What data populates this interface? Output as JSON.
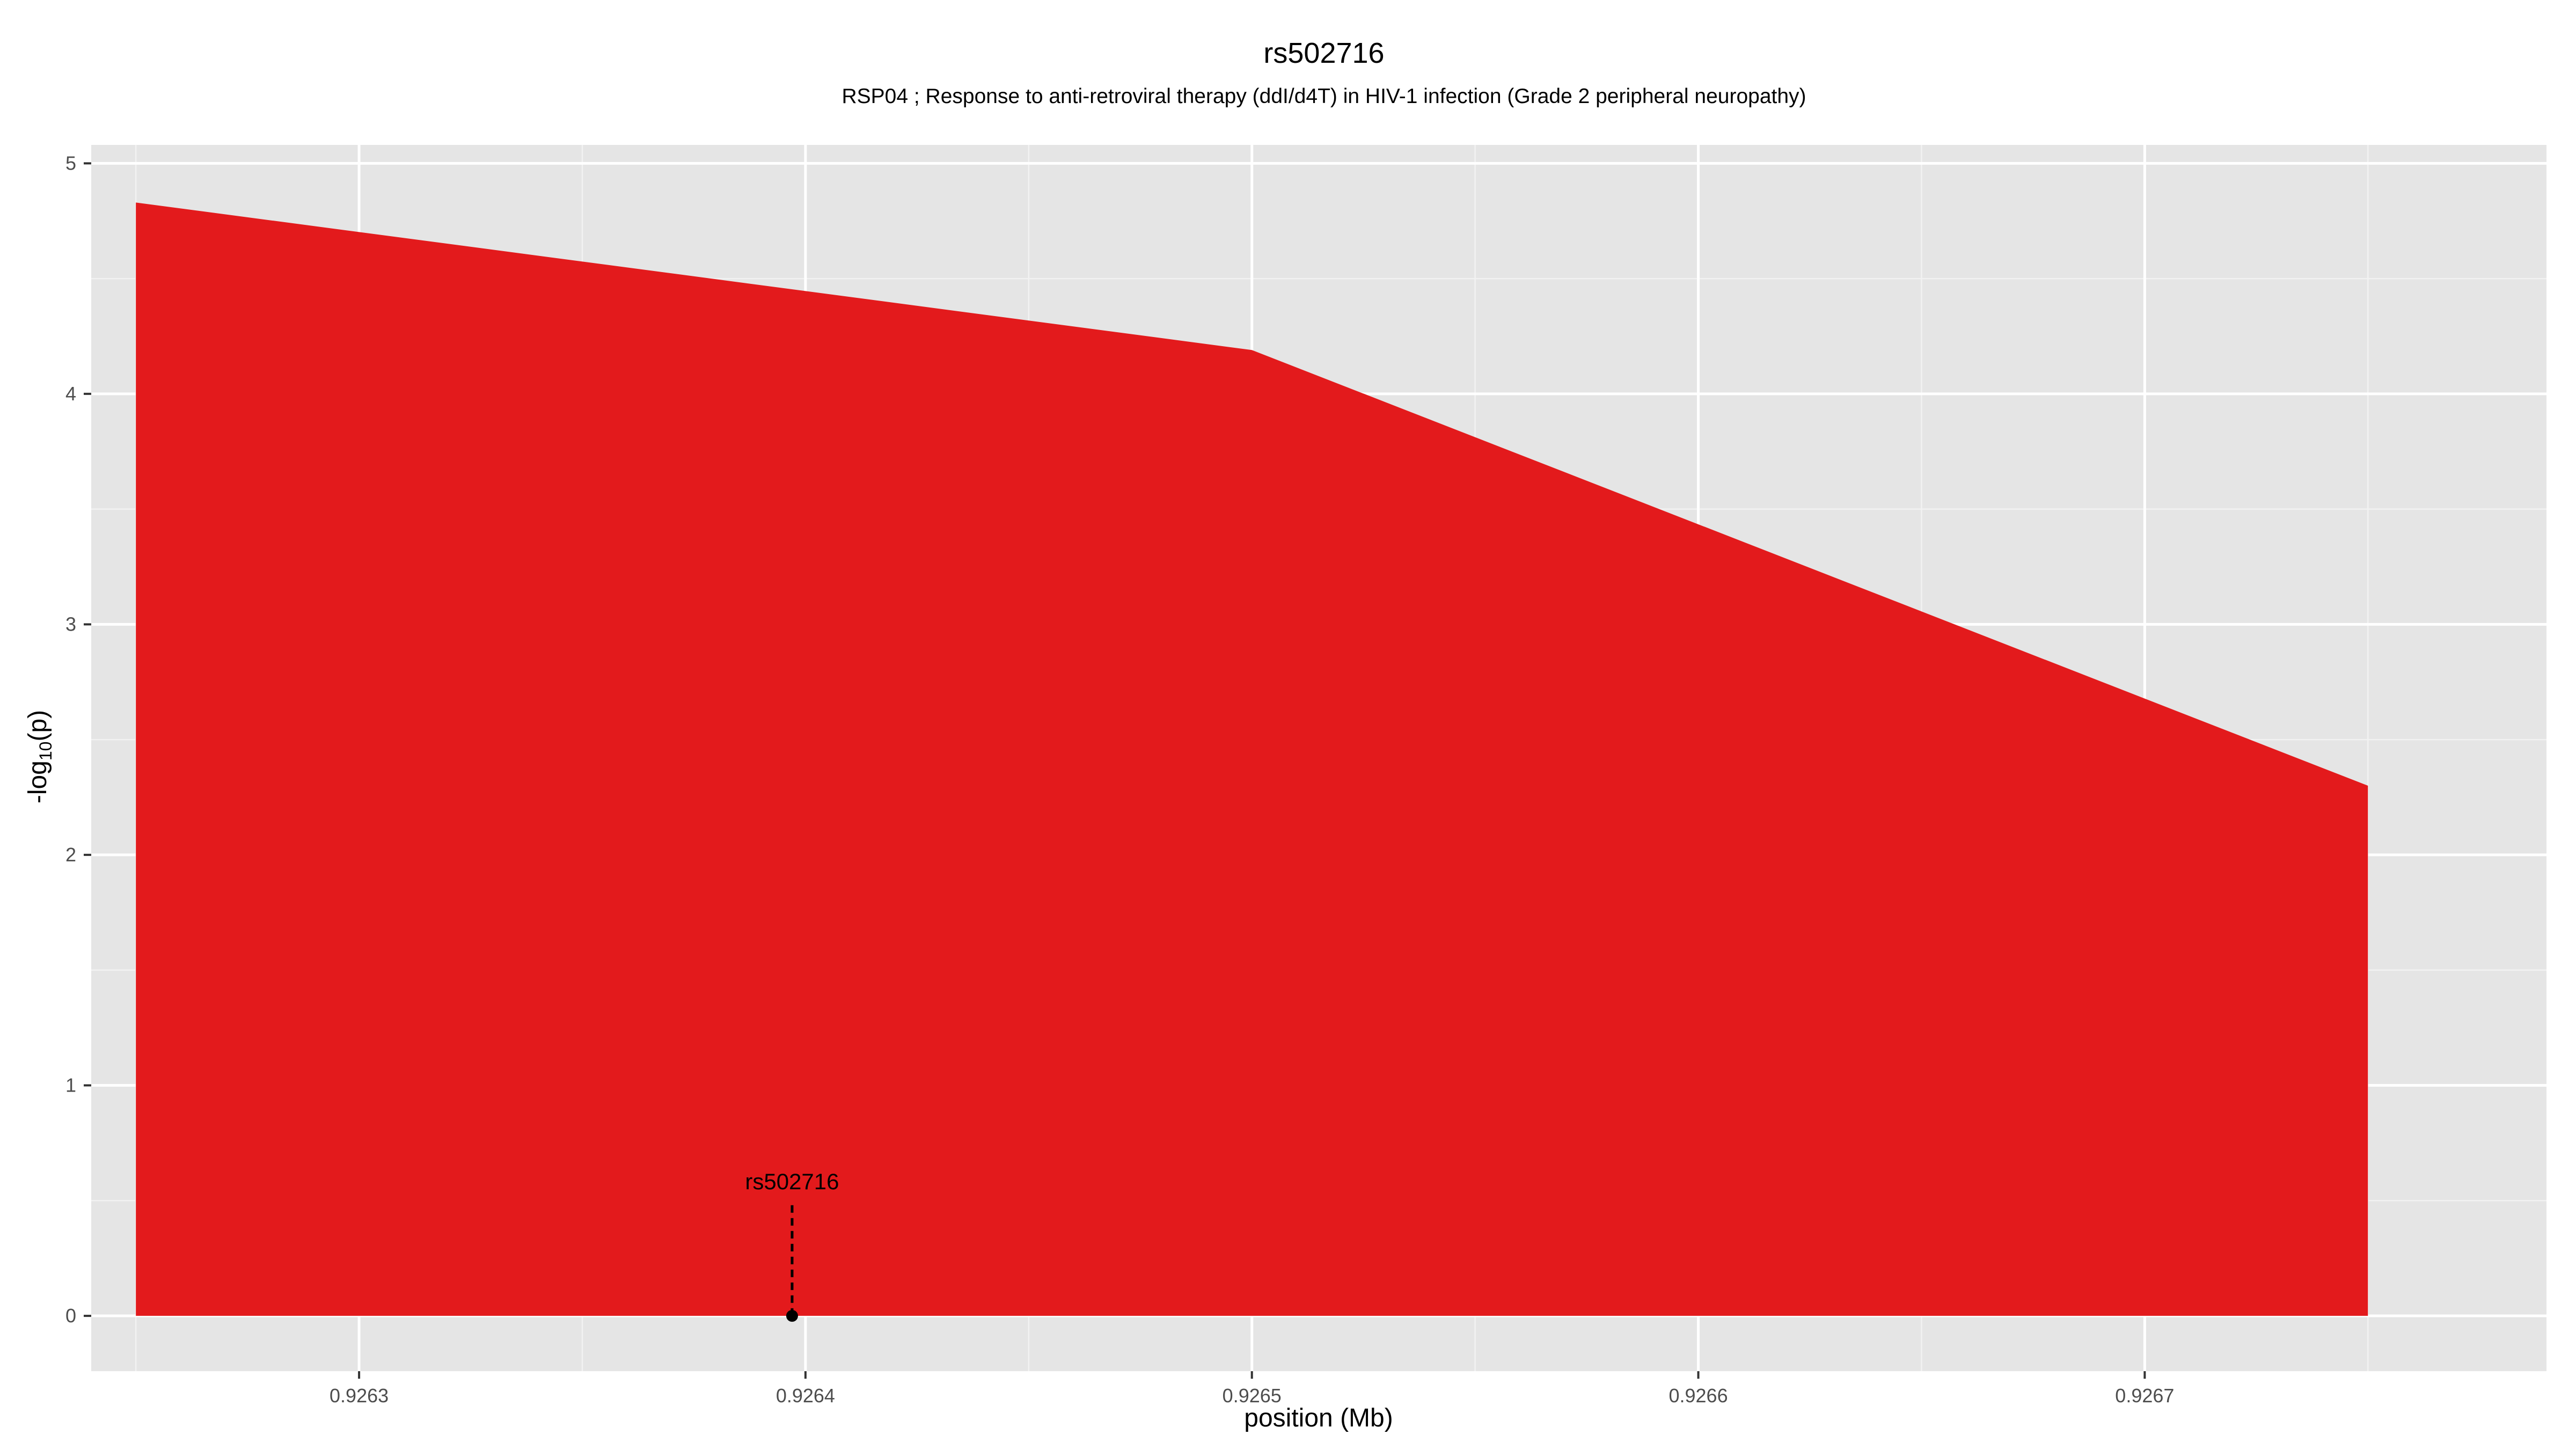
{
  "chart_data": {
    "type": "area",
    "title": "rs502716",
    "subtitle": "RSP04 ; Response to anti-retroviral therapy (ddI/d4T) in HIV-1 infection (Grade 2 peripheral neuropathy)",
    "xlabel": "position (Mb)",
    "ylabel_main": "-log",
    "ylabel_sub": "10",
    "ylabel_tail": "(p)",
    "xlim": [
      0.92624,
      0.92679
    ],
    "ylim": [
      -0.24,
      5.08
    ],
    "x_ticks": [
      0.9263,
      0.9264,
      0.9265,
      0.9266,
      0.9267
    ],
    "x_tick_labels": [
      "0.9263",
      "0.9264",
      "0.9265",
      "0.9266",
      "0.9267"
    ],
    "y_ticks": [
      0,
      1,
      2,
      3,
      4,
      5
    ],
    "y_tick_labels": [
      "0",
      "1",
      "2",
      "3",
      "4",
      "5"
    ],
    "series": [
      {
        "x": [
          0.92625,
          0.9265,
          0.92675
        ],
        "y": [
          4.83,
          4.19,
          2.3
        ],
        "color": "#e31a1c"
      }
    ],
    "annotation": {
      "label": "rs502716",
      "x": 0.926397,
      "y": 0,
      "label_y": 0.48
    },
    "grid": true,
    "panel_background": "#e5e5e5",
    "grid_color": "#ffffff"
  }
}
